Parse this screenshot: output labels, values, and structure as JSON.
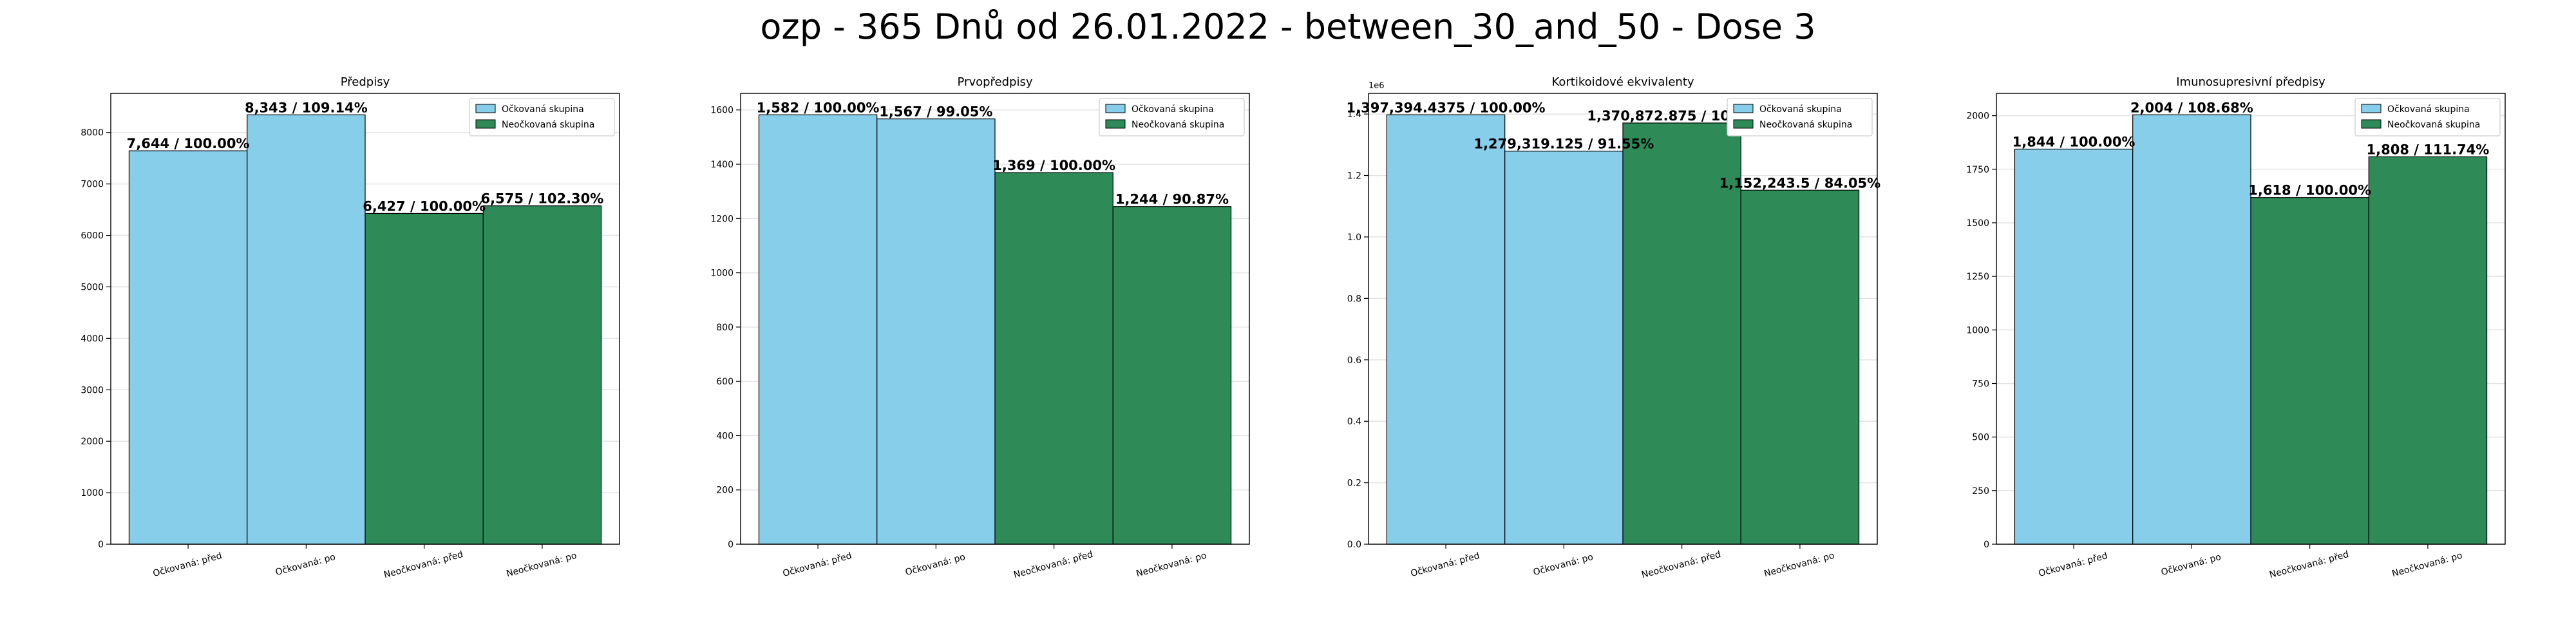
{
  "figure": {
    "suptitle": "ozp - 365 Dnů od 26.01.2022 - between_30_and_50 - Dose 3"
  },
  "colors": {
    "vaccinated": "#87CEEB",
    "unvaccinated": "#2E8B57"
  },
  "chart_data": [
    {
      "type": "bar",
      "title": "Předpisy",
      "categories": [
        "Očkovaná: před",
        "Očkovaná: po",
        "Neočkovaná: před",
        "Neočkovaná: po"
      ],
      "values": [
        7644,
        8343,
        6427,
        6575
      ],
      "value_labels": [
        "7,644 / 100.00%",
        "8,343 / 109.14%",
        "6,427 / 100.00%",
        "6,575 / 102.30%"
      ],
      "groups": [
        "vaccinated",
        "vaccinated",
        "unvaccinated",
        "unvaccinated"
      ],
      "ylim": [
        0,
        8760
      ],
      "yticks": [
        0,
        1000,
        2000,
        3000,
        4000,
        5000,
        6000,
        7000,
        8000
      ],
      "ytick_labels": [
        "0",
        "1000",
        "2000",
        "3000",
        "4000",
        "5000",
        "6000",
        "7000",
        "8000"
      ],
      "y_offset_label": "",
      "legend": [
        "Očkovaná skupina",
        "Neočkovaná skupina"
      ],
      "legend_position": "top-right",
      "grid": true
    },
    {
      "type": "bar",
      "title": "Prvopředpisy",
      "categories": [
        "Očkovaná: před",
        "Očkovaná: po",
        "Neočkovaná: před",
        "Neočkovaná: po"
      ],
      "values": [
        1582,
        1567,
        1369,
        1244
      ],
      "value_labels": [
        "1,582 / 100.00%",
        "1,567 / 99.05%",
        "1,369 / 100.00%",
        "1,244 / 90.87%"
      ],
      "groups": [
        "vaccinated",
        "vaccinated",
        "unvaccinated",
        "unvaccinated"
      ],
      "ylim": [
        0,
        1661
      ],
      "yticks": [
        0,
        200,
        400,
        600,
        800,
        1000,
        1200,
        1400,
        1600
      ],
      "ytick_labels": [
        "0",
        "200",
        "400",
        "600",
        "800",
        "1000",
        "1200",
        "1400",
        "1600"
      ],
      "y_offset_label": "",
      "legend": [
        "Očkovaná skupina",
        "Neočkovaná skupina"
      ],
      "legend_position": "top-right",
      "grid": true
    },
    {
      "type": "bar",
      "title": "Kortikoidové ekvivalenty",
      "categories": [
        "Očkovaná: před",
        "Očkovaná: po",
        "Neočkovaná: před",
        "Neočkovaná: po"
      ],
      "values": [
        1397394.4375,
        1279319.125,
        1370872.875,
        1152243.5
      ],
      "value_labels": [
        "1,397,394.4375 / 100.00%",
        "1,279,319.125 / 91.55%",
        "1,370,872.875 / 100.00%",
        "1,152,243.5 / 84.05%"
      ],
      "groups": [
        "vaccinated",
        "vaccinated",
        "unvaccinated",
        "unvaccinated"
      ],
      "ylim": [
        0,
        1467264
      ],
      "yticks": [
        0,
        200000,
        400000,
        600000,
        800000,
        1000000,
        1200000,
        1400000
      ],
      "ytick_labels": [
        "0.0",
        "0.2",
        "0.4",
        "0.6",
        "0.8",
        "1.0",
        "1.2",
        "1.4"
      ],
      "y_offset_label": "1e6",
      "legend": [
        "Očkovaná skupina",
        "Neočkovaná skupina"
      ],
      "legend_position": "top-right",
      "grid": true
    },
    {
      "type": "bar",
      "title": "Imunosupresivní předpisy",
      "categories": [
        "Očkovaná: před",
        "Očkovaná: po",
        "Neočkovaná: před",
        "Neočkovaná: po"
      ],
      "values": [
        1844,
        2004,
        1618,
        1808
      ],
      "value_labels": [
        "1,844 / 100.00%",
        "2,004 / 108.68%",
        "1,618 / 100.00%",
        "1,808 / 111.74%"
      ],
      "groups": [
        "vaccinated",
        "vaccinated",
        "unvaccinated",
        "unvaccinated"
      ],
      "ylim": [
        0,
        2104
      ],
      "yticks": [
        0,
        250,
        500,
        750,
        1000,
        1250,
        1500,
        1750,
        2000
      ],
      "ytick_labels": [
        "0",
        "250",
        "500",
        "750",
        "1000",
        "1250",
        "1500",
        "1750",
        "2000"
      ],
      "y_offset_label": "",
      "legend": [
        "Očkovaná skupina",
        "Neočkovaná skupina"
      ],
      "legend_position": "top-right",
      "grid": true
    }
  ]
}
